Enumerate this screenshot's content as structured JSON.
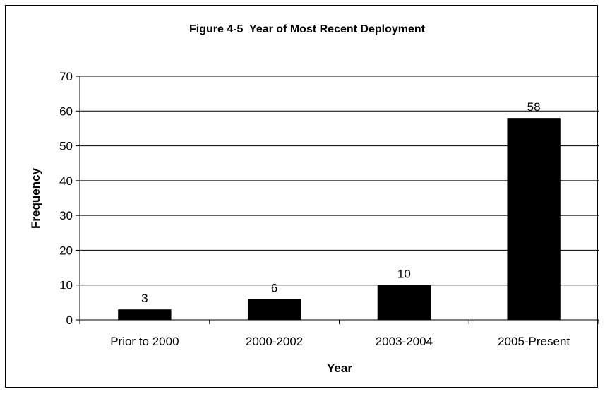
{
  "chart_data": {
    "type": "bar",
    "title": "Figure 4-5  Year of Most Recent Deployment",
    "xlabel": "Year",
    "ylabel": "Frequency",
    "categories": [
      "Prior to 2000",
      "2000-2002",
      "2003-2004",
      "2005-Present"
    ],
    "values": [
      3,
      6,
      10,
      58
    ],
    "data_labels": [
      "3",
      "6",
      "10",
      "58"
    ],
    "ylim": [
      0,
      70
    ],
    "yticks": [
      0,
      10,
      20,
      30,
      40,
      50,
      60,
      70
    ],
    "ytick_labels": [
      "0",
      "10",
      "20",
      "30",
      "40",
      "50",
      "60",
      "70"
    ],
    "grid": true,
    "legend": "none",
    "bar_color": "#000000"
  }
}
